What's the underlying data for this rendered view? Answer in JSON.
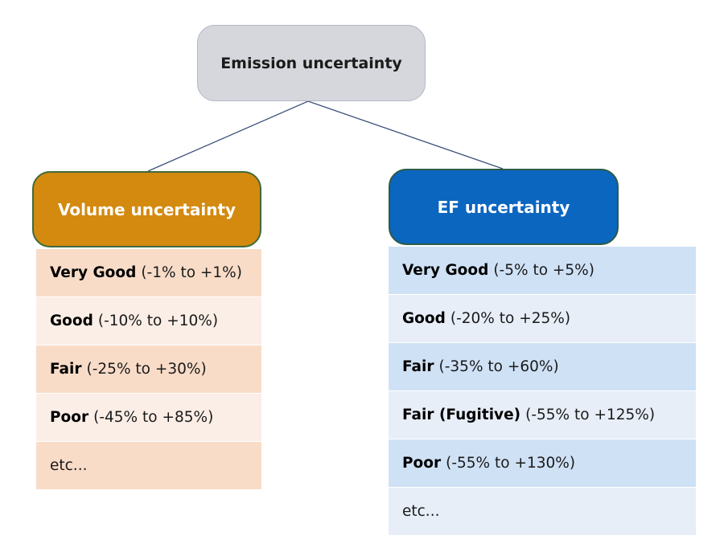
{
  "root": {
    "label": "Emission uncertainty"
  },
  "branches": {
    "volume": {
      "label": "Volume uncertainty",
      "color": "#d38a0f",
      "items": [
        {
          "grade": "Very Good",
          "range": "(-1% to +1%)"
        },
        {
          "grade": "Good",
          "range": "(-10% to +10%)"
        },
        {
          "grade": "Fair",
          "range": "(-25% to +30%)"
        },
        {
          "grade": "Poor",
          "range": "(-45% to +85%)"
        },
        {
          "grade": "",
          "range": "etc..."
        }
      ]
    },
    "ef": {
      "label": "EF uncertainty",
      "color": "#0b66c0",
      "items": [
        {
          "grade": "Very Good",
          "range": "(-5% to +5%)"
        },
        {
          "grade": "Good",
          "range": "(-20% to +25%)"
        },
        {
          "grade": "Fair",
          "range": "(-35% to +60%)"
        },
        {
          "grade": "Fair (Fugitive)",
          "range": "(-55% to +125%)"
        },
        {
          "grade": "Poor",
          "range": "(-55% to +130%)"
        },
        {
          "grade": "",
          "range": "etc..."
        }
      ]
    }
  }
}
